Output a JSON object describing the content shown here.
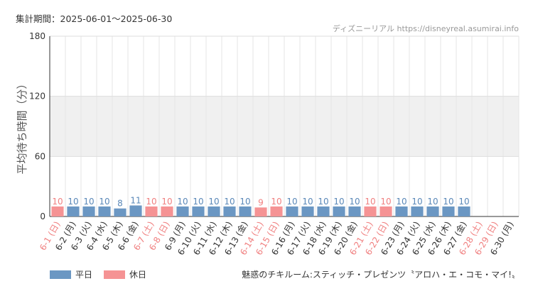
{
  "header": {
    "period_label": "集計期間：2025-06-01〜2025-06-30",
    "source_label": "ディズニーリアル https://disneyreal.asumirai.info"
  },
  "footer": {
    "attraction_name": "魅惑のチキルーム:スティッチ・プレゼンツ〝アロハ・エ・コモ・マイ!〟"
  },
  "colors": {
    "weekday": "#6b97c3",
    "holiday": "#f59394",
    "weekday_label": "#5a88b8",
    "holiday_label": "#f08080",
    "band": "#f0f0f0"
  },
  "chart_data": {
    "type": "bar",
    "ylabel": "平均待ち時間（分）",
    "xlabel": "",
    "ylim": [
      0,
      180
    ],
    "yticks": [
      0,
      60,
      120,
      180
    ],
    "grid": true,
    "legend_position": "bottom-left",
    "legend": [
      {
        "label": "平日",
        "kind": "weekday"
      },
      {
        "label": "休日",
        "kind": "holiday"
      }
    ],
    "categories": [
      "6-1 (日)",
      "6-2 (月)",
      "6-3 (火)",
      "6-4 (水)",
      "6-5 (木)",
      "6-6 (金)",
      "6-7 (土)",
      "6-8 (日)",
      "6-9 (月)",
      "6-10 (火)",
      "6-11 (水)",
      "6-12 (木)",
      "6-13 (金)",
      "6-14 (土)",
      "6-15 (日)",
      "6-16 (月)",
      "6-17 (火)",
      "6-18 (水)",
      "6-19 (木)",
      "6-20 (金)",
      "6-21 (土)",
      "6-22 (日)",
      "6-23 (月)",
      "6-24 (火)",
      "6-25 (水)",
      "6-26 (木)",
      "6-27 (金)",
      "6-28 (土)",
      "6-29 (日)",
      "6-30 (月)"
    ],
    "day_types": [
      "holiday",
      "weekday",
      "weekday",
      "weekday",
      "weekday",
      "weekday",
      "holiday",
      "holiday",
      "weekday",
      "weekday",
      "weekday",
      "weekday",
      "weekday",
      "holiday",
      "holiday",
      "weekday",
      "weekday",
      "weekday",
      "weekday",
      "weekday",
      "holiday",
      "holiday",
      "weekday",
      "weekday",
      "weekday",
      "weekday",
      "weekday",
      "holiday",
      "holiday",
      "weekday"
    ],
    "values": [
      10,
      10,
      10,
      10,
      8,
      11,
      10,
      10,
      10,
      10,
      10,
      10,
      10,
      9,
      10,
      10,
      10,
      10,
      10,
      10,
      10,
      10,
      10,
      10,
      10,
      10,
      10,
      null,
      null,
      null
    ]
  }
}
